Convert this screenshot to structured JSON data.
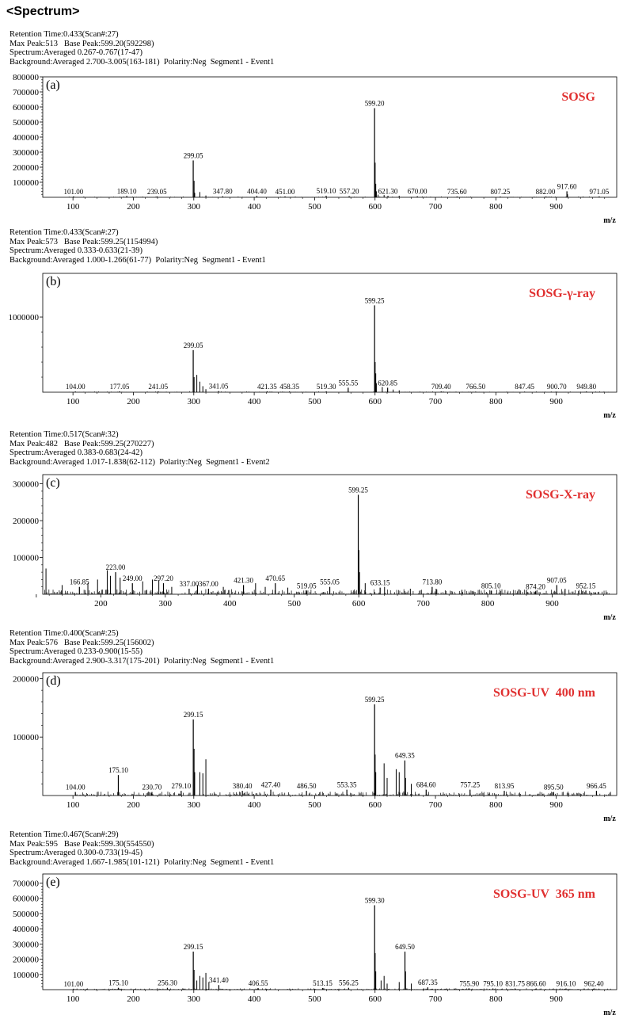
{
  "header": {
    "title": "<Spectrum>"
  },
  "panels": [
    {
      "meta": [
        "Retention Time:0.433(Scan#:27)",
        "Max Peak:513   Base Peak:599.20(592298)",
        "Spectrum:Averaged 0.267-0.767(17-47)",
        "Background:Averaged 2.700-3.005(163-181)  Polarity:Neg  Segment1 - Event1"
      ],
      "panel_label": "(a)",
      "sample_label": "SOSG",
      "chart_data": {
        "type": "bar",
        "xlabel": "m/z",
        "xlim": [
          50,
          1000
        ],
        "ylim": [
          0,
          800000
        ],
        "x_ticks": [
          100,
          200,
          300,
          400,
          500,
          600,
          700,
          800,
          900
        ],
        "y_ticks": [
          {
            "v": 100000,
            "label": "100000"
          },
          {
            "v": 200000,
            "label": "200000"
          },
          {
            "v": 300000,
            "label": "300000"
          },
          {
            "v": 400000,
            "label": "400000"
          },
          {
            "v": 500000,
            "label": "500000"
          },
          {
            "v": 600000,
            "label": "600000"
          },
          {
            "v": 700000,
            "label": "700000"
          },
          {
            "v": 800000,
            "label": "800000"
          }
        ],
        "labeled_peaks": [
          {
            "mz": 101.0,
            "y": 6000,
            "label": "101.00"
          },
          {
            "mz": 189.1,
            "y": 9000,
            "label": "189.10"
          },
          {
            "mz": 239.05,
            "y": 6000,
            "label": "239.05"
          },
          {
            "mz": 299.05,
            "y": 245000,
            "label": "299.05"
          },
          {
            "mz": 347.8,
            "y": 7000,
            "label": "347.80"
          },
          {
            "mz": 404.4,
            "y": 9000,
            "label": "404.40"
          },
          {
            "mz": 451.0,
            "y": 6000,
            "label": "451.00"
          },
          {
            "mz": 519.1,
            "y": 10000,
            "label": "519.10"
          },
          {
            "mz": 557.2,
            "y": 8000,
            "label": "557.20"
          },
          {
            "mz": 599.2,
            "y": 592298,
            "label": "599.20"
          },
          {
            "mz": 621.3,
            "y": 9000,
            "label": "621.30"
          },
          {
            "mz": 670.0,
            "y": 7000,
            "label": "670.00"
          },
          {
            "mz": 735.6,
            "y": 5000,
            "label": "735.60"
          },
          {
            "mz": 807.25,
            "y": 5000,
            "label": "807.25"
          },
          {
            "mz": 882.0,
            "y": 5000,
            "label": "882.00"
          },
          {
            "mz": 917.6,
            "y": 40000,
            "label": "917.60"
          },
          {
            "mz": 971.05,
            "y": 6000,
            "label": "971.05"
          }
        ],
        "minor_peaks": [
          [
            300.5,
            110000
          ],
          [
            301.5,
            30000
          ],
          [
            310,
            35000
          ],
          [
            320,
            12000
          ],
          [
            600.2,
            230000
          ],
          [
            601.2,
            90000
          ],
          [
            602.2,
            40000
          ],
          [
            605,
            18000
          ],
          [
            615,
            15000
          ],
          [
            640,
            10000
          ],
          [
            918.6,
            20000
          ]
        ]
      }
    },
    {
      "meta": [
        "Retention Time:0.433(Scan#:27)",
        "Max Peak:573   Base Peak:599.25(1154994)",
        "Spectrum:Averaged 0.333-0.633(21-39)",
        "Background:Averaged 1.000-1.266(61-77)  Polarity:Neg  Segment1 - Event1"
      ],
      "panel_label": "(b)",
      "sample_label": "SOSG-γ-ray",
      "chart_data": {
        "type": "bar",
        "xlabel": "m/z",
        "xlim": [
          50,
          1000
        ],
        "ylim": [
          0,
          1580000
        ],
        "x_ticks": [
          100,
          200,
          300,
          400,
          500,
          600,
          700,
          800,
          900
        ],
        "y_ticks": [
          {
            "v": 1000000,
            "label": "1000000"
          }
        ],
        "labeled_peaks": [
          {
            "mz": 104.0,
            "y": 10000,
            "label": "104.00"
          },
          {
            "mz": 177.05,
            "y": 12000,
            "label": "177.05"
          },
          {
            "mz": 241.05,
            "y": 12000,
            "label": "241.05"
          },
          {
            "mz": 299.05,
            "y": 560000,
            "label": "299.05"
          },
          {
            "mz": 341.05,
            "y": 15000,
            "label": "341.05"
          },
          {
            "mz": 421.35,
            "y": 12000,
            "label": "421.35"
          },
          {
            "mz": 458.35,
            "y": 10000,
            "label": "458.35"
          },
          {
            "mz": 519.3,
            "y": 12000,
            "label": "519.30"
          },
          {
            "mz": 555.55,
            "y": 60000,
            "label": "555.55"
          },
          {
            "mz": 599.25,
            "y": 1154994,
            "label": "599.25"
          },
          {
            "mz": 620.85,
            "y": 60000,
            "label": "620.85"
          },
          {
            "mz": 709.4,
            "y": 10000,
            "label": "709.40"
          },
          {
            "mz": 766.5,
            "y": 8000,
            "label": "766.50"
          },
          {
            "mz": 847.45,
            "y": 8000,
            "label": "847.45"
          },
          {
            "mz": 900.7,
            "y": 8000,
            "label": "900.70"
          },
          {
            "mz": 949.8,
            "y": 10000,
            "label": "949.80"
          }
        ],
        "minor_peaks": [
          [
            300.5,
            200000
          ],
          [
            305,
            230000
          ],
          [
            310,
            140000
          ],
          [
            315,
            80000
          ],
          [
            320,
            40000
          ],
          [
            600.2,
            400000
          ],
          [
            601.2,
            250000
          ],
          [
            602.2,
            120000
          ],
          [
            612,
            70000
          ],
          [
            630,
            35000
          ],
          [
            640,
            25000
          ]
        ]
      }
    },
    {
      "meta": [
        "Retention Time:0.517(Scan#:32)",
        "Max Peak:482   Base Peak:599.25(270227)",
        "Spectrum:Averaged 0.383-0.683(24-42)",
        "Background:Averaged 1.017-1.838(62-112)  Polarity:Neg  Segment1 - Event2"
      ],
      "panel_label": "(c)",
      "sample_label": "SOSG-X-ray",
      "chart_data": {
        "type": "bar",
        "xlabel": "m/z",
        "xlim": [
          110,
          1000
        ],
        "ylim": [
          0,
          325000
        ],
        "x_ticks": [
          100,
          200,
          300,
          400,
          500,
          600,
          700,
          800,
          900
        ],
        "y_ticks": [
          {
            "v": 100000,
            "label": "100000"
          },
          {
            "v": 200000,
            "label": "200000"
          },
          {
            "v": 300000,
            "label": "300000"
          }
        ],
        "labeled_peaks": [
          {
            "mz": 166.85,
            "y": 20000,
            "label": "166.85"
          },
          {
            "mz": 223.0,
            "y": 60000,
            "label": "223.00"
          },
          {
            "mz": 249.0,
            "y": 30000,
            "label": "249.00"
          },
          {
            "mz": 297.2,
            "y": 30000,
            "label": "297.20"
          },
          {
            "mz": 337.0,
            "y": 15000,
            "label": "337.00"
          },
          {
            "mz": 367.0,
            "y": 15000,
            "label": "367.00"
          },
          {
            "mz": 421.3,
            "y": 25000,
            "label": "421.30"
          },
          {
            "mz": 470.65,
            "y": 30000,
            "label": "470.65"
          },
          {
            "mz": 519.05,
            "y": 10000,
            "label": "519.05"
          },
          {
            "mz": 555.05,
            "y": 20000,
            "label": "555.05"
          },
          {
            "mz": 599.25,
            "y": 270227,
            "label": "599.25"
          },
          {
            "mz": 633.15,
            "y": 18000,
            "label": "633.15"
          },
          {
            "mz": 713.8,
            "y": 20000,
            "label": "713.80"
          },
          {
            "mz": 805.1,
            "y": 10000,
            "label": "805.10"
          },
          {
            "mz": 874.2,
            "y": 8000,
            "label": "874.20"
          },
          {
            "mz": 907.05,
            "y": 25000,
            "label": "907.05"
          },
          {
            "mz": 952.15,
            "y": 10000,
            "label": "952.15"
          }
        ],
        "minor_peaks": [
          [
            115,
            70000
          ],
          [
            140,
            25000
          ],
          [
            180,
            30000
          ],
          [
            195,
            40000
          ],
          [
            210,
            65000
          ],
          [
            215,
            50000
          ],
          [
            230,
            45000
          ],
          [
            265,
            35000
          ],
          [
            280,
            40000
          ],
          [
            290,
            38000
          ],
          [
            310,
            20000
          ],
          [
            350,
            25000
          ],
          [
            390,
            20000
          ],
          [
            440,
            30000
          ],
          [
            455,
            20000
          ],
          [
            490,
            18000
          ],
          [
            600.2,
            120000
          ],
          [
            601.2,
            60000
          ],
          [
            610,
            30000
          ],
          [
            640,
            20000
          ],
          [
            680,
            15000
          ],
          [
            720,
            15000
          ],
          [
            760,
            12000
          ],
          [
            860,
            12000
          ],
          [
            920,
            15000
          ]
        ],
        "noise": {
          "from": 110,
          "to": 990,
          "max": 14000,
          "seed": 3
        }
      }
    },
    {
      "meta": [
        "Retention Time:0.400(Scan#:25)",
        "Max Peak:576   Base Peak:599.25(156002)",
        "Spectrum:Averaged 0.233-0.900(15-55)",
        "Background:Averaged 2.900-3.317(175-201)  Polarity:Neg  Segment1 - Event1"
      ],
      "panel_label": "(d)",
      "sample_label": "SOSG-UV  400 nm",
      "chart_data": {
        "type": "bar",
        "xlabel": "m/z",
        "xlim": [
          50,
          1000
        ],
        "ylim": [
          0,
          210000
        ],
        "x_ticks": [
          100,
          200,
          300,
          400,
          500,
          600,
          700,
          800,
          900
        ],
        "y_ticks": [
          {
            "v": 100000,
            "label": "100000"
          },
          {
            "v": 200000,
            "label": "200000"
          }
        ],
        "labeled_peaks": [
          {
            "mz": 104.0,
            "y": 6000,
            "label": "104.00"
          },
          {
            "mz": 175.1,
            "y": 35000,
            "label": "175.10"
          },
          {
            "mz": 230.7,
            "y": 6000,
            "label": "230.70"
          },
          {
            "mz": 279.1,
            "y": 8000,
            "label": "279.10"
          },
          {
            "mz": 299.15,
            "y": 130000,
            "label": "299.15"
          },
          {
            "mz": 380.4,
            "y": 8000,
            "label": "380.40"
          },
          {
            "mz": 427.4,
            "y": 10000,
            "label": "427.40"
          },
          {
            "mz": 486.5,
            "y": 8000,
            "label": "486.50"
          },
          {
            "mz": 553.35,
            "y": 10000,
            "label": "553.35"
          },
          {
            "mz": 599.25,
            "y": 156002,
            "label": "599.25"
          },
          {
            "mz": 649.35,
            "y": 60000,
            "label": "649.35"
          },
          {
            "mz": 684.6,
            "y": 10000,
            "label": "684.60"
          },
          {
            "mz": 757.25,
            "y": 10000,
            "label": "757.25"
          },
          {
            "mz": 813.95,
            "y": 8000,
            "label": "813.95"
          },
          {
            "mz": 895.5,
            "y": 6000,
            "label": "895.50"
          },
          {
            "mz": 966.45,
            "y": 8000,
            "label": "966.45"
          }
        ],
        "minor_peaks": [
          [
            300.5,
            80000
          ],
          [
            301.5,
            40000
          ],
          [
            310,
            40000
          ],
          [
            315,
            38000
          ],
          [
            320,
            62000
          ],
          [
            600.2,
            70000
          ],
          [
            601.2,
            40000
          ],
          [
            615,
            55000
          ],
          [
            620,
            30000
          ],
          [
            635,
            45000
          ],
          [
            640,
            40000
          ],
          [
            650.5,
            30000
          ],
          [
            660,
            20000
          ]
        ],
        "noise": {
          "from": 105,
          "to": 990,
          "max": 7000,
          "seed": 7
        }
      }
    },
    {
      "meta": [
        "Retention Time:0.467(Scan#:29)",
        "Max Peak:595   Base Peak:599.30(554550)",
        "Spectrum:Averaged 0.300-0.733(19-45)",
        "Background:Averaged 1.667-1.985(101-121)  Polarity:Neg  Segment1 - Event1"
      ],
      "panel_label": "(e)",
      "sample_label": "SOSG-UV  365 nm",
      "chart_data": {
        "type": "bar",
        "xlabel": "m/z",
        "xlim": [
          50,
          1000
        ],
        "ylim": [
          0,
          760000
        ],
        "x_ticks": [
          100,
          200,
          300,
          400,
          500,
          600,
          700,
          800,
          900
        ],
        "y_ticks": [
          {
            "v": 100000,
            "label": "100000"
          },
          {
            "v": 200000,
            "label": "200000"
          },
          {
            "v": 300000,
            "label": "300000"
          },
          {
            "v": 400000,
            "label": "400000"
          },
          {
            "v": 500000,
            "label": "500000"
          },
          {
            "v": 600000,
            "label": "600000"
          },
          {
            "v": 700000,
            "label": "700000"
          }
        ],
        "labeled_peaks": [
          {
            "mz": 101.0,
            "y": 6000,
            "label": "101.00"
          },
          {
            "mz": 175.1,
            "y": 12000,
            "label": "175.10"
          },
          {
            "mz": 256.3,
            "y": 12000,
            "label": "256.30"
          },
          {
            "mz": 299.15,
            "y": 250000,
            "label": "299.15"
          },
          {
            "mz": 341.4,
            "y": 30000,
            "label": "341.40"
          },
          {
            "mz": 406.55,
            "y": 10000,
            "label": "406.55"
          },
          {
            "mz": 513.15,
            "y": 10000,
            "label": "513.15"
          },
          {
            "mz": 556.25,
            "y": 12000,
            "label": "556.25"
          },
          {
            "mz": 599.3,
            "y": 554550,
            "label": "599.30"
          },
          {
            "mz": 649.5,
            "y": 250000,
            "label": "649.50"
          },
          {
            "mz": 687.35,
            "y": 15000,
            "label": "687.35"
          },
          {
            "mz": 755.9,
            "y": 8000,
            "label": "755.90"
          },
          {
            "mz": 795.1,
            "y": 8000,
            "label": "795.10"
          },
          {
            "mz": 831.75,
            "y": 8000,
            "label": "831.75"
          },
          {
            "mz": 866.6,
            "y": 8000,
            "label": "866.60"
          },
          {
            "mz": 916.1,
            "y": 8000,
            "label": "916.10"
          },
          {
            "mz": 962.4,
            "y": 8000,
            "label": "962.40"
          }
        ],
        "minor_peaks": [
          [
            300.5,
            130000
          ],
          [
            305,
            60000
          ],
          [
            310,
            90000
          ],
          [
            315,
            80000
          ],
          [
            320,
            110000
          ],
          [
            325,
            50000
          ],
          [
            600.2,
            240000
          ],
          [
            601.2,
            120000
          ],
          [
            610,
            60000
          ],
          [
            615,
            90000
          ],
          [
            620,
            40000
          ],
          [
            640,
            50000
          ],
          [
            650.5,
            120000
          ],
          [
            660,
            40000
          ]
        ],
        "noise": {
          "from": 105,
          "to": 990,
          "max": 9000,
          "seed": 11
        }
      }
    }
  ]
}
